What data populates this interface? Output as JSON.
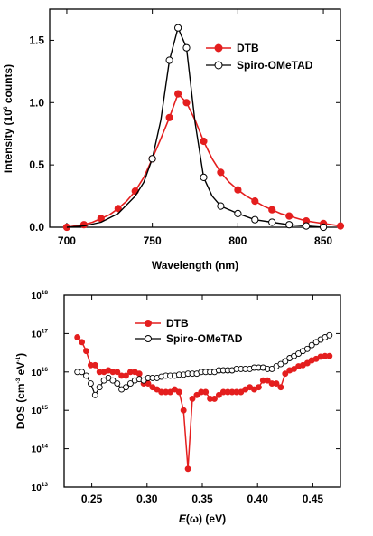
{
  "chart_data": [
    {
      "type": "line",
      "xlabel": "Wavelength (nm)",
      "ylabel_main": "Intensity (10",
      "ylabel_exp": "6",
      "ylabel_tail": " counts)",
      "xlim": [
        690,
        860
      ],
      "ylim": [
        0.0,
        1.75
      ],
      "xticks": [
        700,
        750,
        800,
        850
      ],
      "yticks": [
        0.0,
        0.5,
        1.0,
        1.5
      ],
      "ytick_labels": [
        "0.0",
        "0.5",
        "1.0",
        "1.5"
      ],
      "legend_position": "top-right",
      "series": [
        {
          "name": "DTB",
          "color": "#e41e1e",
          "marker": "filled-circle",
          "points": [
            [
              700,
              0.0
            ],
            [
              705,
              0.01
            ],
            [
              710,
              0.02
            ],
            [
              715,
              0.04
            ],
            [
              720,
              0.07
            ],
            [
              725,
              0.1
            ],
            [
              730,
              0.15
            ],
            [
              735,
              0.21
            ],
            [
              740,
              0.29
            ],
            [
              745,
              0.4
            ],
            [
              750,
              0.55
            ],
            [
              755,
              0.71
            ],
            [
              760,
              0.88
            ],
            [
              765,
              1.07
            ],
            [
              770,
              1.0
            ],
            [
              775,
              0.86
            ],
            [
              780,
              0.69
            ],
            [
              785,
              0.55
            ],
            [
              790,
              0.44
            ],
            [
              795,
              0.36
            ],
            [
              800,
              0.3
            ],
            [
              805,
              0.25
            ],
            [
              810,
              0.21
            ],
            [
              815,
              0.17
            ],
            [
              820,
              0.14
            ],
            [
              825,
              0.11
            ],
            [
              830,
              0.09
            ],
            [
              835,
              0.07
            ],
            [
              840,
              0.05
            ],
            [
              845,
              0.04
            ],
            [
              850,
              0.03
            ],
            [
              855,
              0.02
            ],
            [
              860,
              0.01
            ]
          ],
          "marker_x": [
            700,
            710,
            720,
            730,
            740,
            750,
            760,
            765,
            770,
            780,
            790,
            800,
            810,
            820,
            830,
            840,
            850,
            860
          ]
        },
        {
          "name": "Spiro-OMeTAD",
          "color": "#000000",
          "marker": "open-circle",
          "points": [
            [
              700,
              0.0
            ],
            [
              710,
              0.01
            ],
            [
              720,
              0.04
            ],
            [
              730,
              0.11
            ],
            [
              740,
              0.25
            ],
            [
              745,
              0.36
            ],
            [
              750,
              0.55
            ],
            [
              755,
              0.86
            ],
            [
              760,
              1.34
            ],
            [
              765,
              1.6
            ],
            [
              770,
              1.44
            ],
            [
              775,
              0.84
            ],
            [
              780,
              0.4
            ],
            [
              785,
              0.25
            ],
            [
              790,
              0.17
            ],
            [
              800,
              0.11
            ],
            [
              810,
              0.06
            ],
            [
              820,
              0.04
            ],
            [
              830,
              0.02
            ],
            [
              840,
              0.01
            ],
            [
              850,
              0.0
            ]
          ],
          "marker_x": [
            750,
            760,
            765,
            770,
            780,
            790,
            800,
            810,
            820,
            830,
            840,
            850
          ]
        }
      ]
    },
    {
      "type": "line",
      "xlabel_var": "E",
      "xlabel_arg": "(ω)",
      "xlabel_unit": " (eV)",
      "ylabel_main": "DOS (cm",
      "ylabel_exp1": "-3",
      "ylabel_mid": " eV",
      "ylabel_exp2": "-1",
      "ylabel_tail": ")",
      "yscale": "log",
      "xlim": [
        0.225,
        0.475
      ],
      "ylim": [
        10000000000000.0,
        1e+18
      ],
      "xticks": [
        0.25,
        0.3,
        0.35,
        0.4,
        0.45
      ],
      "xtick_labels": [
        "0.25",
        "0.30",
        "0.35",
        "0.40",
        "0.45"
      ],
      "yticks": [
        13,
        14,
        15,
        16,
        17,
        18
      ],
      "ytick_base": "10",
      "ytick_exps": [
        "13",
        "14",
        "15",
        "16",
        "17",
        "18"
      ],
      "legend_position": "top-left",
      "series": [
        {
          "name": "DTB",
          "color": "#e41e1e",
          "marker": "filled-circle",
          "points": [
            [
              0.237,
              8e+16
            ],
            [
              0.241,
              6e+16
            ],
            [
              0.245,
              3.5e+16
            ],
            [
              0.249,
              1.5e+16
            ],
            [
              0.253,
              1.5e+16
            ],
            [
              0.257,
              1e+16
            ],
            [
              0.261,
              1e+16
            ],
            [
              0.265,
              1.1e+16
            ],
            [
              0.269,
              1e+16
            ],
            [
              0.273,
              1e+16
            ],
            [
              0.277,
              8000000000000000.0
            ],
            [
              0.281,
              8000000000000000.0
            ],
            [
              0.285,
              1e+16
            ],
            [
              0.289,
              1e+16
            ],
            [
              0.293,
              9000000000000000.0
            ],
            [
              0.297,
              5000000000000000.0
            ],
            [
              0.301,
              5000000000000000.0
            ],
            [
              0.305,
              4000000000000000.0
            ],
            [
              0.309,
              3500000000000000.0
            ],
            [
              0.313,
              3000000000000000.0
            ],
            [
              0.317,
              3000000000000000.0
            ],
            [
              0.321,
              3000000000000000.0
            ],
            [
              0.325,
              3500000000000000.0
            ],
            [
              0.329,
              3000000000000000.0
            ],
            [
              0.333,
              1000000000000000.0
            ],
            [
              0.337,
              30000000000000.0
            ],
            [
              0.341,
              2000000000000000.0
            ],
            [
              0.345,
              2500000000000000.0
            ],
            [
              0.349,
              3000000000000000.0
            ],
            [
              0.353,
              3000000000000000.0
            ],
            [
              0.357,
              2000000000000000.0
            ],
            [
              0.361,
              2000000000000000.0
            ],
            [
              0.365,
              2500000000000000.0
            ],
            [
              0.369,
              3000000000000000.0
            ],
            [
              0.373,
              3000000000000000.0
            ],
            [
              0.377,
              3000000000000000.0
            ],
            [
              0.381,
              3000000000000000.0
            ],
            [
              0.385,
              3000000000000000.0
            ],
            [
              0.389,
              3500000000000000.0
            ],
            [
              0.393,
              4000000000000000.0
            ],
            [
              0.397,
              3500000000000000.0
            ],
            [
              0.401,
              4000000000000000.0
            ],
            [
              0.405,
              6000000000000000.0
            ],
            [
              0.409,
              6000000000000000.0
            ],
            [
              0.413,
              5000000000000000.0
            ],
            [
              0.417,
              5000000000000000.0
            ],
            [
              0.421,
              4000000000000000.0
            ],
            [
              0.425,
              9000000000000000.0
            ],
            [
              0.429,
              1.1e+16
            ],
            [
              0.433,
              1.2e+16
            ],
            [
              0.437,
              1.4e+16
            ],
            [
              0.441,
              1.5e+16
            ],
            [
              0.445,
              1.7e+16
            ],
            [
              0.449,
              2e+16
            ],
            [
              0.453,
              2.2e+16
            ],
            [
              0.457,
              2.5e+16
            ],
            [
              0.461,
              2.6e+16
            ],
            [
              0.465,
              2.6e+16
            ]
          ]
        },
        {
          "name": "Spiro-OMeTAD",
          "color": "#000000",
          "marker": "open-circle",
          "points": [
            [
              0.237,
              1e+16
            ],
            [
              0.241,
              1e+16
            ],
            [
              0.245,
              8000000000000000.0
            ],
            [
              0.249,
              5000000000000000.0
            ],
            [
              0.253,
              2500000000000000.0
            ],
            [
              0.257,
              4000000000000000.0
            ],
            [
              0.261,
              6000000000000000.0
            ],
            [
              0.265,
              7000000000000000.0
            ],
            [
              0.269,
              6000000000000000.0
            ],
            [
              0.273,
              5000000000000000.0
            ],
            [
              0.277,
              3500000000000000.0
            ],
            [
              0.281,
              4000000000000000.0
            ],
            [
              0.285,
              5000000000000000.0
            ],
            [
              0.289,
              6000000000000000.0
            ],
            [
              0.293,
              6500000000000000.0
            ],
            [
              0.297,
              6000000000000000.0
            ],
            [
              0.301,
              7000000000000000.0
            ],
            [
              0.305,
              7000000000000000.0
            ],
            [
              0.309,
              7000000000000000.0
            ],
            [
              0.313,
              7500000000000000.0
            ],
            [
              0.317,
              8000000000000000.0
            ],
            [
              0.321,
              8000000000000000.0
            ],
            [
              0.325,
              8000000000000000.0
            ],
            [
              0.329,
              8500000000000000.0
            ],
            [
              0.333,
              8500000000000000.0
            ],
            [
              0.337,
              9000000000000000.0
            ],
            [
              0.341,
              9000000000000000.0
            ],
            [
              0.345,
              9000000000000000.0
            ],
            [
              0.349,
              1e+16
            ],
            [
              0.353,
              1e+16
            ],
            [
              0.357,
              1e+16
            ],
            [
              0.361,
              1e+16
            ],
            [
              0.365,
              1.1e+16
            ],
            [
              0.369,
              1.1e+16
            ],
            [
              0.373,
              1.1e+16
            ],
            [
              0.377,
              1.1e+16
            ],
            [
              0.381,
              1.2e+16
            ],
            [
              0.385,
              1.2e+16
            ],
            [
              0.389,
              1.2e+16
            ],
            [
              0.393,
              1.2e+16
            ],
            [
              0.397,
              1.3e+16
            ],
            [
              0.401,
              1.3e+16
            ],
            [
              0.405,
              1.3e+16
            ],
            [
              0.409,
              1.2e+16
            ],
            [
              0.413,
              1.2e+16
            ],
            [
              0.417,
              1.4e+16
            ],
            [
              0.421,
              1.6e+16
            ],
            [
              0.425,
              1.9e+16
            ],
            [
              0.429,
              2.3e+16
            ],
            [
              0.433,
              2.6e+16
            ],
            [
              0.437,
              3e+16
            ],
            [
              0.441,
              3.5e+16
            ],
            [
              0.445,
              4e+16
            ],
            [
              0.449,
              5e+16
            ],
            [
              0.453,
              6e+16
            ],
            [
              0.457,
              7e+16
            ],
            [
              0.461,
              8e+16
            ],
            [
              0.465,
              9e+16
            ]
          ]
        }
      ]
    }
  ]
}
